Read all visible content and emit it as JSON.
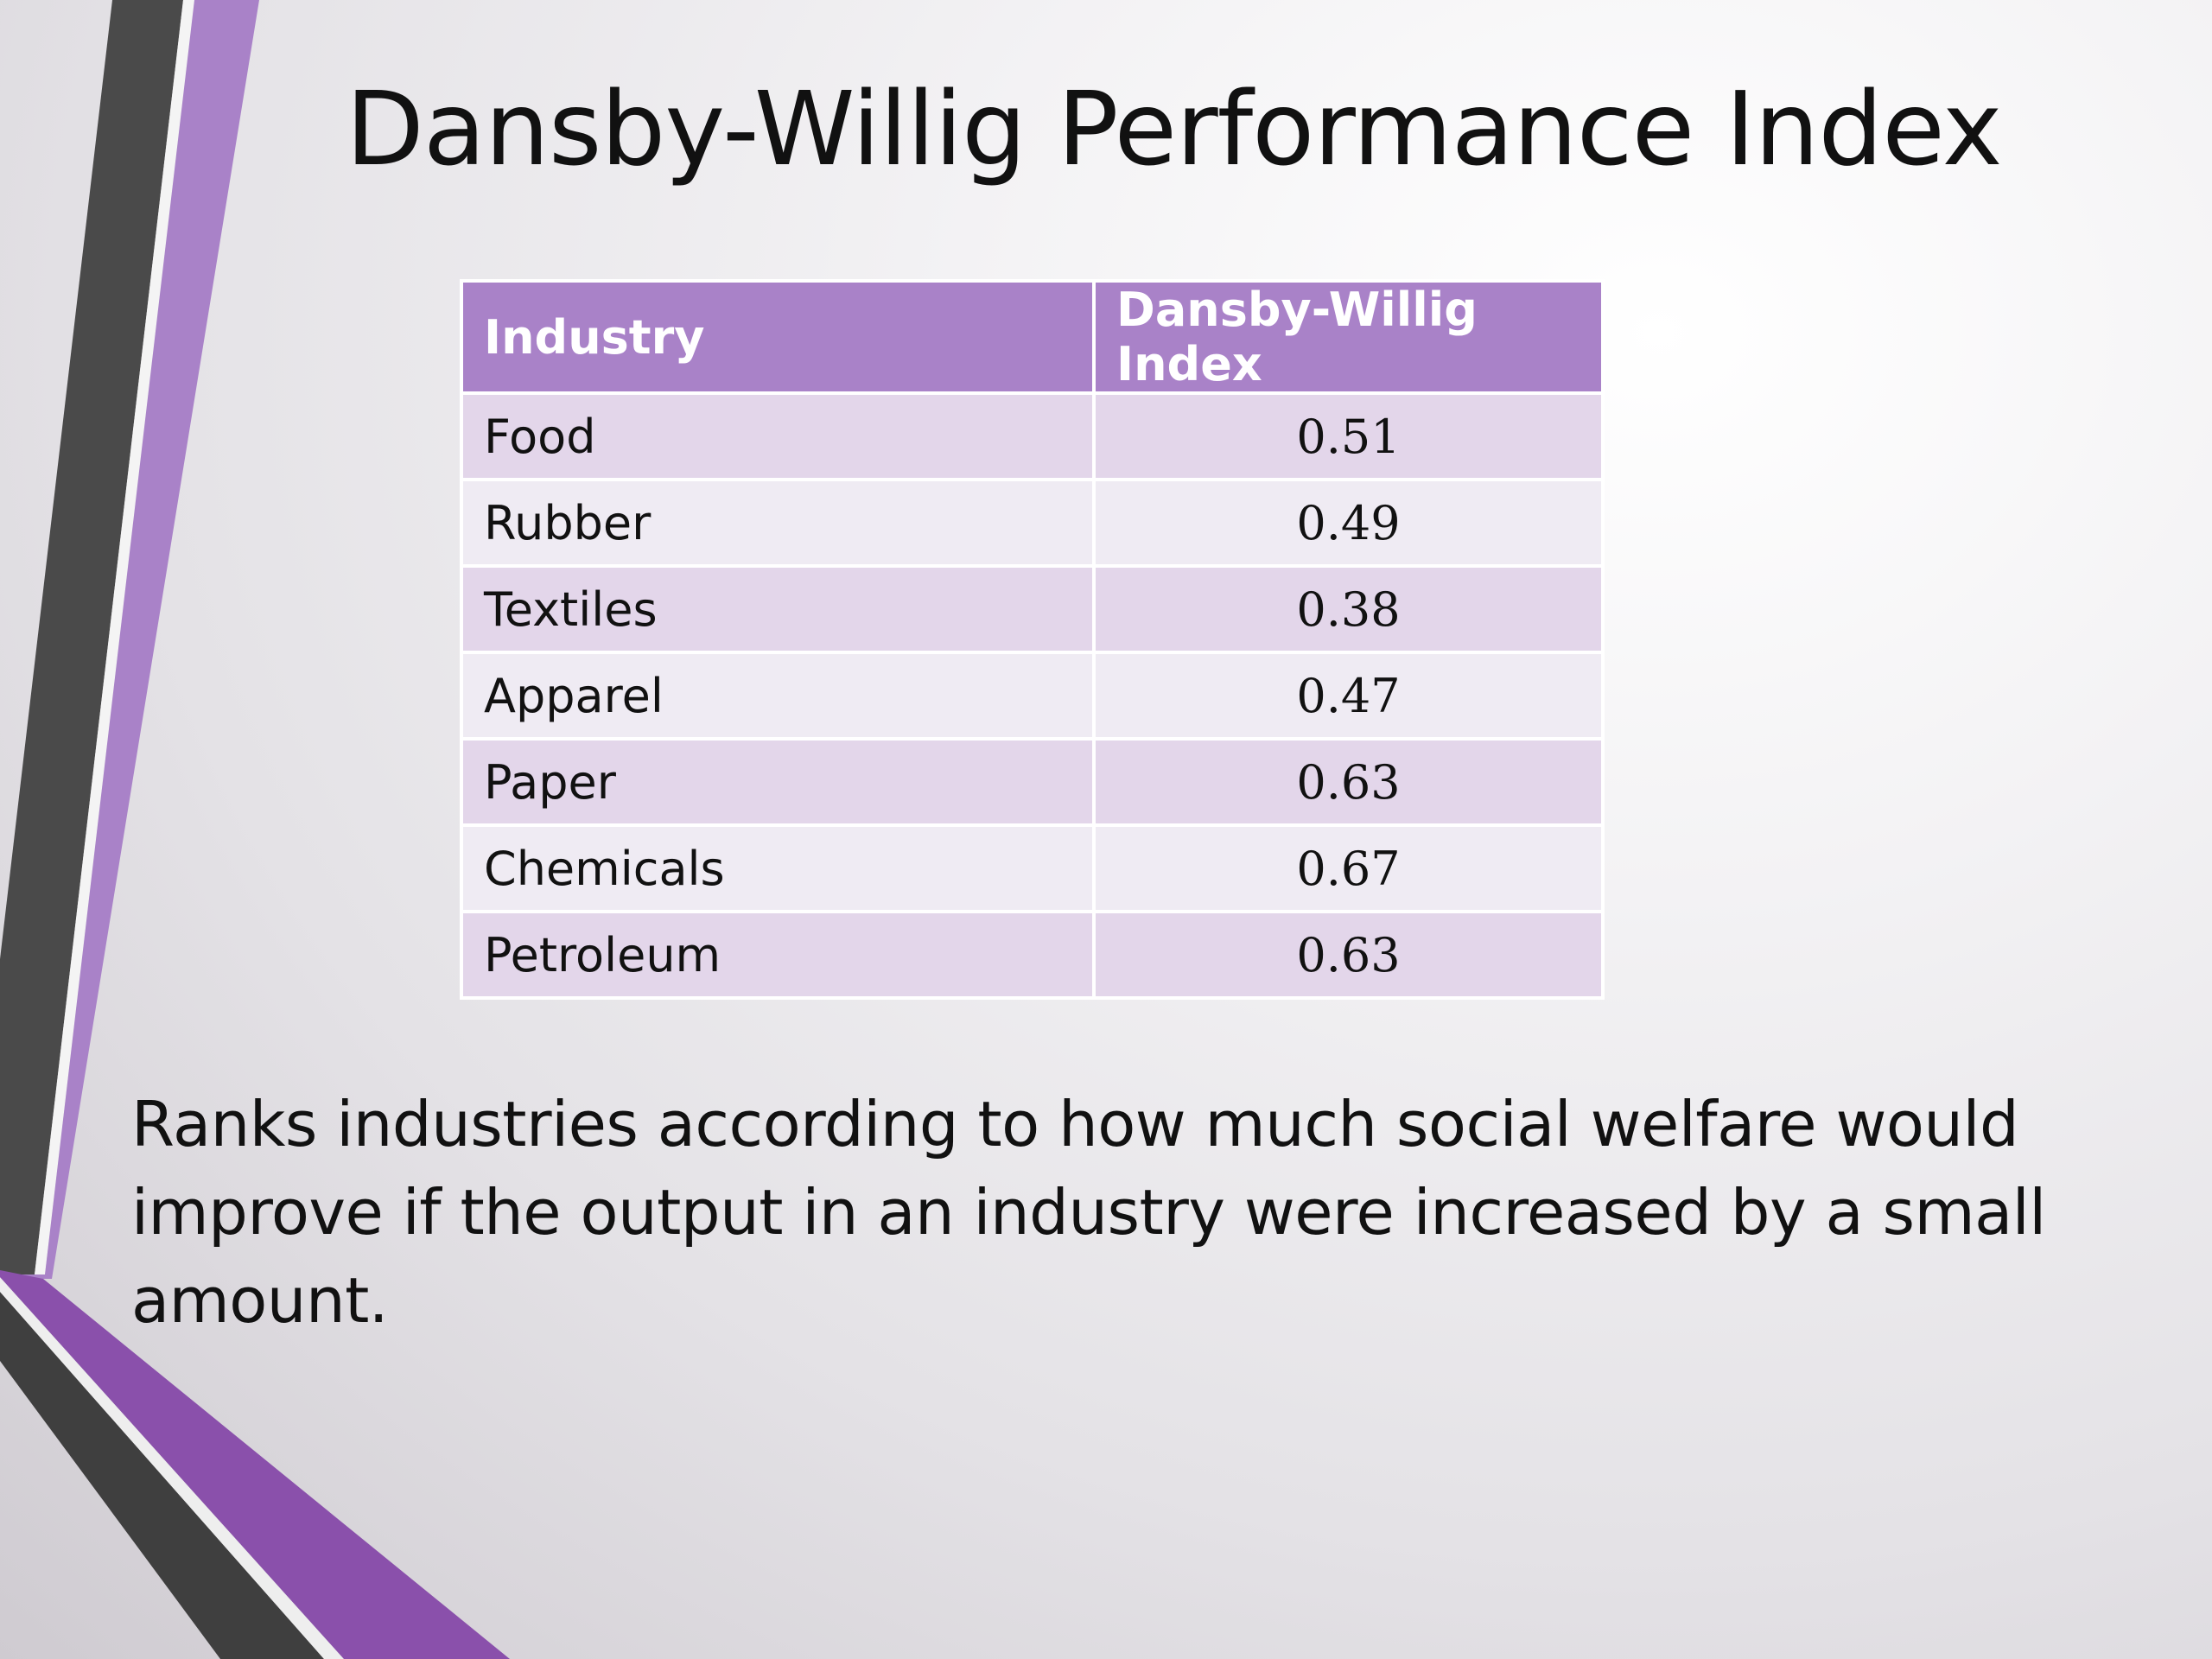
{
  "slide": {
    "title": "Dansby-Willig Performance Index",
    "description": "Ranks industries according to how much social welfare would improve if the output in an industry were increased by a small amount."
  },
  "table": {
    "headers": [
      "Industry",
      "Dansby-Willig Index"
    ],
    "rows": [
      {
        "industry": "Food",
        "index": "0.51"
      },
      {
        "industry": "Rubber",
        "index": "0.49"
      },
      {
        "industry": "Textiles",
        "index": "0.38"
      },
      {
        "industry": "Apparel",
        "index": "0.47"
      },
      {
        "industry": "Paper",
        "index": "0.63"
      },
      {
        "industry": "Chemicals",
        "index": "0.67"
      },
      {
        "industry": "Petroleum",
        "index": "0.63"
      }
    ]
  },
  "colors": {
    "header_bg": "#a982c8",
    "row_odd": "#e3d6ea",
    "row_even": "#efebf3",
    "accent_purple": "#a57dc6",
    "accent_dark": "#4a4a4a"
  }
}
